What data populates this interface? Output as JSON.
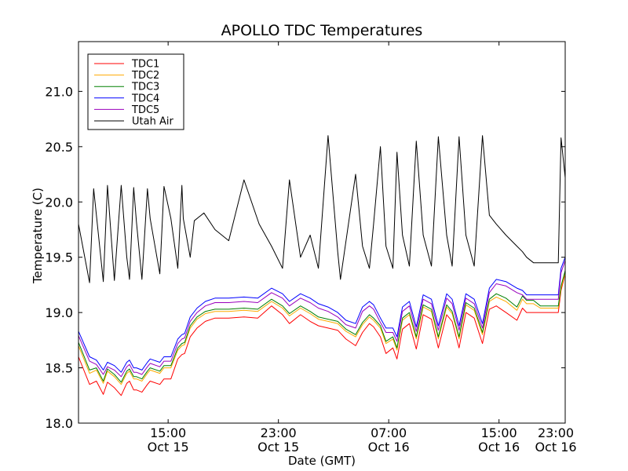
{
  "chart_data": {
    "type": "line",
    "title": "APOLLO TDC Temperatures",
    "xlabel": "Date (GMT)",
    "ylabel": "Temperature (C)",
    "xlim": [
      8.5,
      43.8
    ],
    "ylim": [
      18.0,
      21.45
    ],
    "x_unit": "hours since Oct 15 00:00 GMT",
    "yticks": [
      {
        "value": 18.0,
        "label": "18.0"
      },
      {
        "value": 18.5,
        "label": "18.5"
      },
      {
        "value": 19.0,
        "label": "19.0"
      },
      {
        "value": 19.5,
        "label": "19.5"
      },
      {
        "value": 20.0,
        "label": "20.0"
      },
      {
        "value": 20.5,
        "label": "20.5"
      },
      {
        "value": 21.0,
        "label": "21.0"
      }
    ],
    "xticks": [
      {
        "value": 15,
        "time": "15:00",
        "date": "Oct 15"
      },
      {
        "value": 23,
        "time": "23:00",
        "date": "Oct 15"
      },
      {
        "value": 31,
        "time": "07:00",
        "date": "Oct 16"
      },
      {
        "value": 39,
        "time": "15:00",
        "date": "Oct 16"
      },
      {
        "value": 47,
        "time": "23:00",
        "date": "Oct 16"
      }
    ],
    "legend": {
      "position": "top-left"
    },
    "series": [
      {
        "name": "TDC1",
        "color": "#ff0000",
        "x": [
          8.5,
          9.3,
          9.8,
          10.3,
          10.6,
          11.1,
          11.6,
          12.0,
          12.2,
          12.5,
          12.7,
          13.1,
          13.5,
          13.7,
          14.4,
          14.7,
          15.2,
          15.7,
          16.0,
          16.2,
          16.6,
          17.1,
          17.7,
          18.4,
          19.4,
          20.5,
          21.5,
          22.5,
          23.3,
          23.8,
          24.6,
          25.3,
          25.9,
          26.6,
          27.3,
          27.9,
          28.6,
          29.1,
          29.6,
          29.9,
          30.4,
          30.8,
          31.3,
          31.6,
          32.0,
          32.5,
          33.0,
          33.5,
          34.1,
          34.6,
          35.2,
          35.6,
          36.1,
          36.6,
          37.2,
          37.8,
          38.3,
          38.8,
          39.5,
          40.3,
          40.7,
          41.0,
          41.5,
          42.0,
          42.6,
          43.0,
          43.3,
          43.5,
          43.8
        ],
        "y": [
          18.6,
          18.35,
          18.38,
          18.26,
          18.37,
          18.32,
          18.25,
          18.36,
          18.38,
          18.3,
          18.3,
          18.28,
          18.35,
          18.38,
          18.35,
          18.4,
          18.4,
          18.58,
          18.62,
          18.63,
          18.78,
          18.86,
          18.92,
          18.95,
          18.95,
          18.96,
          18.95,
          19.06,
          18.98,
          18.9,
          18.98,
          18.92,
          18.88,
          18.86,
          18.84,
          18.76,
          18.7,
          18.82,
          18.9,
          18.87,
          18.78,
          18.63,
          18.68,
          18.58,
          18.85,
          18.9,
          18.67,
          18.98,
          18.94,
          18.68,
          18.98,
          18.92,
          18.68,
          19.0,
          18.95,
          18.72,
          19.03,
          19.06,
          19.0,
          18.93,
          19.04,
          19.0,
          19.0,
          19.0,
          19.0,
          19.0,
          19.0,
          19.2,
          19.35
        ]
      },
      {
        "name": "TDC2",
        "color": "#ffaa00",
        "x": [
          8.5,
          9.3,
          9.8,
          10.3,
          10.6,
          11.1,
          11.6,
          12.0,
          12.2,
          12.5,
          12.7,
          13.1,
          13.5,
          13.7,
          14.4,
          14.7,
          15.2,
          15.7,
          16.0,
          16.2,
          16.6,
          17.1,
          17.7,
          18.4,
          19.4,
          20.5,
          21.5,
          22.5,
          23.3,
          23.8,
          24.6,
          25.3,
          25.9,
          26.6,
          27.3,
          27.9,
          28.6,
          29.1,
          29.6,
          29.9,
          30.4,
          30.8,
          31.3,
          31.6,
          32.0,
          32.5,
          33.0,
          33.5,
          34.1,
          34.6,
          35.2,
          35.6,
          36.1,
          36.6,
          37.2,
          37.8,
          38.3,
          38.8,
          39.5,
          40.3,
          40.7,
          41.0,
          41.5,
          42.0,
          42.6,
          43.0,
          43.3,
          43.5,
          43.8
        ],
        "y": [
          18.7,
          18.45,
          18.48,
          18.36,
          18.47,
          18.42,
          18.35,
          18.45,
          18.47,
          18.4,
          18.4,
          18.38,
          18.45,
          18.48,
          18.45,
          18.5,
          18.5,
          18.66,
          18.7,
          18.71,
          18.86,
          18.94,
          18.99,
          19.01,
          19.01,
          19.02,
          19.01,
          19.1,
          19.04,
          18.97,
          19.04,
          18.99,
          18.94,
          18.92,
          18.9,
          18.83,
          18.78,
          18.89,
          18.96,
          18.93,
          18.86,
          18.72,
          18.76,
          18.66,
          18.93,
          18.98,
          18.76,
          19.05,
          19.01,
          18.76,
          19.05,
          18.99,
          18.76,
          19.07,
          19.02,
          18.8,
          19.1,
          19.14,
          19.1,
          19.02,
          19.12,
          19.08,
          19.08,
          19.04,
          19.04,
          19.04,
          19.04,
          19.22,
          19.36
        ]
      },
      {
        "name": "TDC3",
        "color": "#008000",
        "x": [
          8.5,
          9.3,
          9.8,
          10.3,
          10.6,
          11.1,
          11.6,
          12.0,
          12.2,
          12.5,
          12.7,
          13.1,
          13.5,
          13.7,
          14.4,
          14.7,
          15.2,
          15.7,
          16.0,
          16.2,
          16.6,
          17.1,
          17.7,
          18.4,
          19.4,
          20.5,
          21.5,
          22.5,
          23.3,
          23.8,
          24.6,
          25.3,
          25.9,
          26.6,
          27.3,
          27.9,
          28.6,
          29.1,
          29.6,
          29.9,
          30.4,
          30.8,
          31.3,
          31.6,
          32.0,
          32.5,
          33.0,
          33.5,
          34.1,
          34.6,
          35.2,
          35.6,
          36.1,
          36.6,
          37.2,
          37.8,
          38.3,
          38.8,
          39.5,
          40.3,
          40.7,
          41.0,
          41.5,
          42.0,
          42.6,
          43.0,
          43.3,
          43.5,
          43.8
        ],
        "y": [
          18.73,
          18.48,
          18.5,
          18.38,
          18.49,
          18.44,
          18.37,
          18.47,
          18.49,
          18.42,
          18.42,
          18.4,
          18.47,
          18.5,
          18.47,
          18.52,
          18.52,
          18.68,
          18.72,
          18.73,
          18.88,
          18.96,
          19.01,
          19.03,
          19.03,
          19.04,
          19.03,
          19.12,
          19.06,
          18.99,
          19.06,
          19.01,
          18.96,
          18.94,
          18.92,
          18.85,
          18.8,
          18.91,
          18.98,
          18.95,
          18.88,
          18.74,
          18.78,
          18.68,
          18.95,
          19.0,
          18.78,
          19.07,
          19.03,
          18.78,
          19.07,
          19.01,
          18.78,
          19.09,
          19.04,
          18.82,
          19.12,
          19.17,
          19.13,
          19.05,
          19.15,
          19.11,
          19.11,
          19.06,
          19.06,
          19.06,
          19.06,
          19.24,
          19.38
        ]
      },
      {
        "name": "TDC4",
        "color": "#0000ff",
        "x": [
          8.5,
          9.3,
          9.8,
          10.3,
          10.6,
          11.1,
          11.6,
          12.0,
          12.2,
          12.5,
          12.7,
          13.1,
          13.5,
          13.7,
          14.4,
          14.7,
          15.2,
          15.7,
          16.0,
          16.2,
          16.6,
          17.1,
          17.7,
          18.4,
          19.4,
          20.5,
          21.5,
          22.5,
          23.3,
          23.8,
          24.6,
          25.3,
          25.9,
          26.6,
          27.3,
          27.9,
          28.6,
          29.1,
          29.6,
          29.9,
          30.4,
          30.8,
          31.3,
          31.6,
          32.0,
          32.5,
          33.0,
          33.5,
          34.1,
          34.6,
          35.2,
          35.6,
          36.1,
          36.6,
          37.2,
          37.8,
          38.3,
          38.8,
          39.5,
          40.3,
          40.7,
          41.0,
          41.5,
          42.0,
          42.6,
          43.0,
          43.3,
          43.5,
          43.8
        ],
        "y": [
          18.83,
          18.6,
          18.57,
          18.48,
          18.55,
          18.52,
          18.46,
          18.55,
          18.57,
          18.5,
          18.5,
          18.48,
          18.55,
          18.58,
          18.55,
          18.6,
          18.6,
          18.76,
          18.8,
          18.81,
          18.96,
          19.04,
          19.1,
          19.13,
          19.13,
          19.14,
          19.13,
          19.22,
          19.17,
          19.1,
          19.17,
          19.13,
          19.08,
          19.05,
          19.0,
          18.93,
          18.9,
          19.05,
          19.1,
          19.07,
          18.95,
          18.86,
          18.86,
          18.78,
          19.05,
          19.1,
          18.87,
          19.16,
          19.12,
          18.88,
          19.17,
          19.12,
          18.88,
          19.17,
          19.12,
          18.9,
          19.22,
          19.3,
          19.28,
          19.22,
          19.2,
          19.16,
          19.16,
          19.16,
          19.16,
          19.16,
          19.16,
          19.4,
          19.5
        ]
      },
      {
        "name": "TDC5",
        "color": "#9900bb",
        "x": [
          8.5,
          9.3,
          9.8,
          10.3,
          10.6,
          11.1,
          11.6,
          12.0,
          12.2,
          12.5,
          12.7,
          13.1,
          13.5,
          13.7,
          14.4,
          14.7,
          15.2,
          15.7,
          16.0,
          16.2,
          16.6,
          17.1,
          17.7,
          18.4,
          19.4,
          20.5,
          21.5,
          22.5,
          23.3,
          23.8,
          24.6,
          25.3,
          25.9,
          26.6,
          27.3,
          27.9,
          28.6,
          29.1,
          29.6,
          29.9,
          30.4,
          30.8,
          31.3,
          31.6,
          32.0,
          32.5,
          33.0,
          33.5,
          34.1,
          34.6,
          35.2,
          35.6,
          36.1,
          36.6,
          37.2,
          37.8,
          38.3,
          38.8,
          39.5,
          40.3,
          40.7,
          41.0,
          41.5,
          42.0,
          42.6,
          43.0,
          43.3,
          43.5,
          43.8
        ],
        "y": [
          18.79,
          18.56,
          18.53,
          18.44,
          18.51,
          18.48,
          18.42,
          18.51,
          18.53,
          18.46,
          18.46,
          18.44,
          18.51,
          18.54,
          18.51,
          18.56,
          18.56,
          18.72,
          18.76,
          18.77,
          18.92,
          19.0,
          19.06,
          19.09,
          19.09,
          19.1,
          19.09,
          19.18,
          19.13,
          19.06,
          19.13,
          19.09,
          19.04,
          19.01,
          18.96,
          18.89,
          18.86,
          19.01,
          19.06,
          19.03,
          18.91,
          18.82,
          18.82,
          18.74,
          19.01,
          19.06,
          18.83,
          19.12,
          19.08,
          18.84,
          19.13,
          19.08,
          18.84,
          19.13,
          19.08,
          18.86,
          19.18,
          19.26,
          19.24,
          19.18,
          19.16,
          19.12,
          19.12,
          19.12,
          19.12,
          19.12,
          19.12,
          19.36,
          19.47
        ]
      },
      {
        "name": "Utah Air",
        "color": "#000000",
        "x": [
          8.5,
          9.3,
          9.6,
          10.3,
          10.6,
          11.1,
          11.6,
          12.0,
          12.2,
          12.5,
          12.7,
          13.1,
          13.5,
          13.7,
          14.4,
          14.7,
          15.2,
          15.7,
          16.0,
          16.1,
          16.6,
          16.9,
          17.6,
          18.4,
          19.4,
          20.5,
          21.6,
          22.5,
          23.3,
          23.8,
          24.6,
          25.3,
          25.9,
          26.6,
          27.3,
          27.5,
          28.6,
          29.1,
          29.6,
          29.9,
          30.4,
          30.8,
          31.3,
          31.6,
          32.0,
          32.5,
          33.0,
          33.5,
          34.1,
          34.6,
          35.2,
          35.6,
          36.1,
          36.6,
          37.2,
          37.8,
          38.3,
          38.8,
          39.5,
          40.3,
          40.7,
          41.0,
          41.5,
          42.0,
          42.6,
          43.0,
          43.3,
          43.5,
          43.8
        ],
        "y": [
          19.8,
          19.27,
          20.12,
          19.28,
          20.15,
          19.29,
          20.15,
          19.5,
          19.3,
          20.13,
          19.82,
          19.3,
          20.12,
          19.85,
          19.35,
          20.14,
          19.85,
          19.4,
          20.15,
          19.85,
          19.5,
          19.83,
          19.9,
          19.75,
          19.65,
          20.2,
          19.8,
          19.6,
          19.4,
          20.2,
          19.5,
          19.7,
          19.4,
          20.6,
          19.55,
          19.3,
          20.25,
          19.6,
          19.4,
          19.8,
          20.5,
          19.6,
          19.4,
          20.45,
          19.7,
          19.42,
          20.55,
          19.7,
          19.42,
          20.59,
          19.7,
          19.42,
          20.59,
          19.7,
          19.42,
          20.6,
          19.88,
          19.8,
          19.7,
          19.6,
          19.55,
          19.5,
          19.45,
          19.45,
          19.45,
          19.45,
          19.45,
          20.58,
          20.22
        ]
      }
    ]
  }
}
